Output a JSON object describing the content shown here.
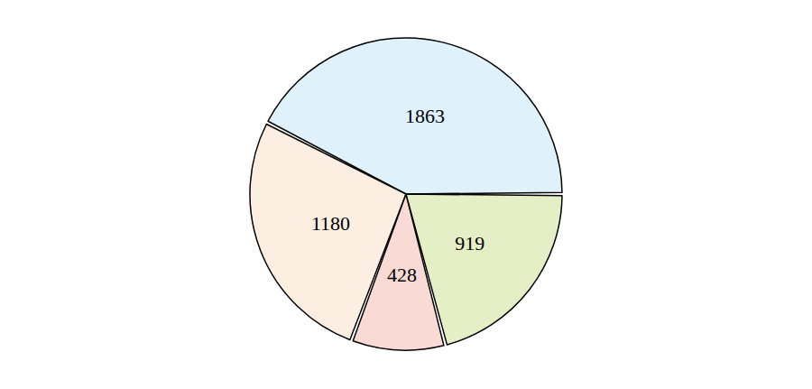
{
  "chart_data": {
    "type": "pie",
    "values": [
      1863,
      1180,
      428,
      919
    ],
    "colors": [
      "#dff2fb",
      "#fdeee2",
      "#fadad5",
      "#e5efc5"
    ],
    "data_labels": true
  }
}
